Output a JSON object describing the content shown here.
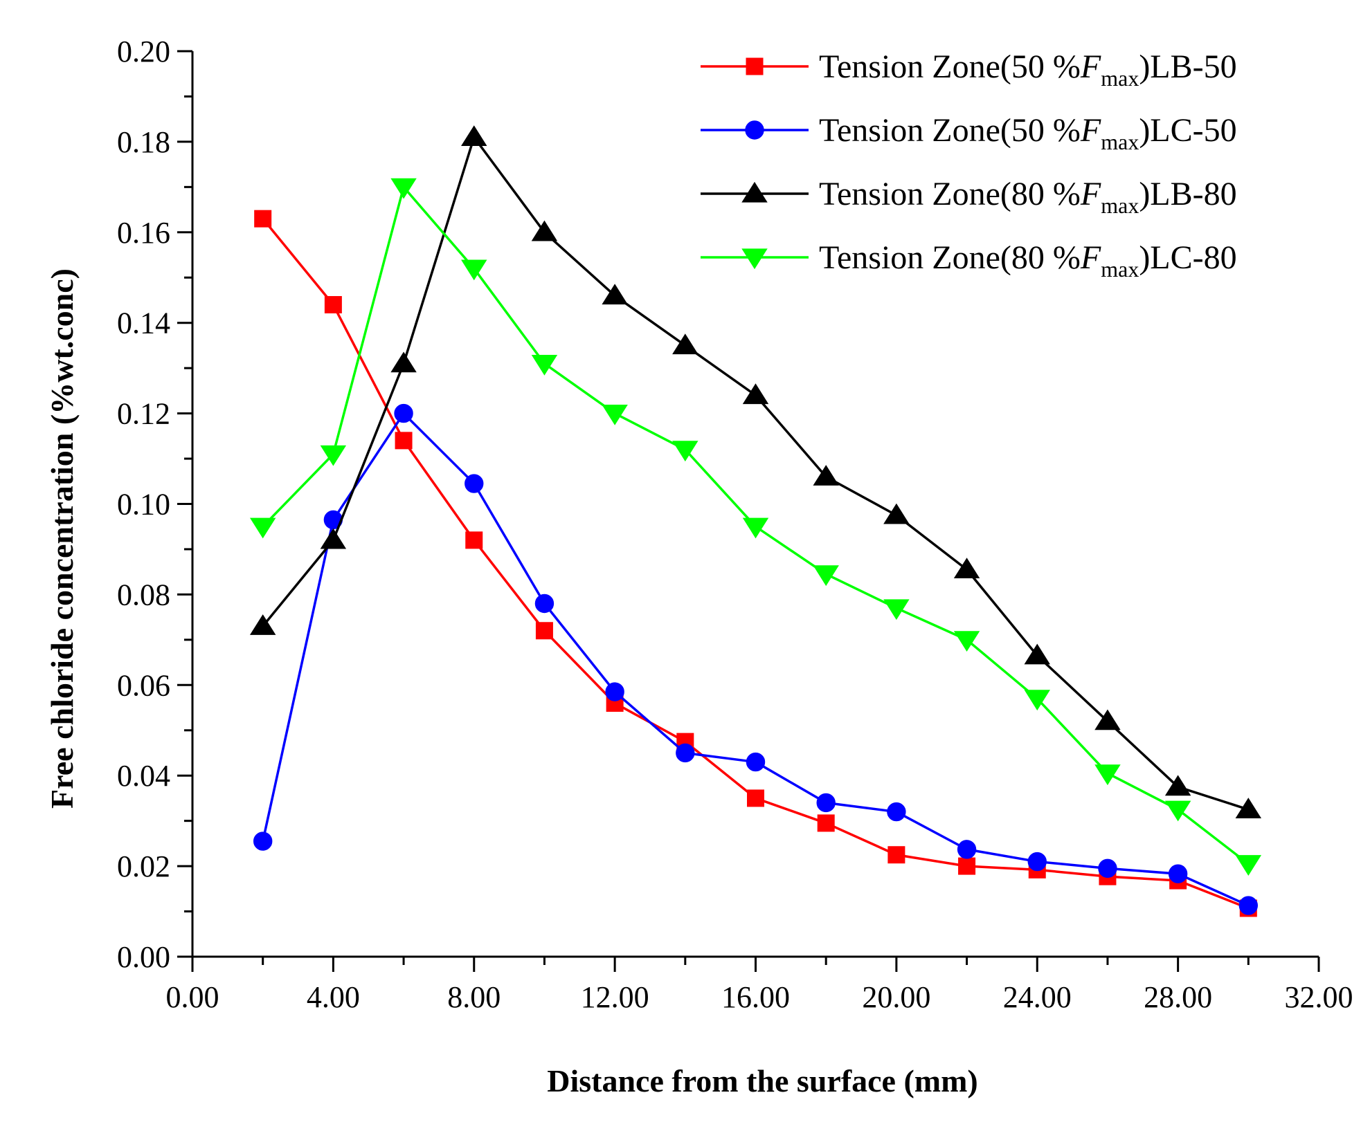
{
  "chart_data": {
    "type": "line",
    "xlabel": "Distance from the surface (mm)",
    "ylabel": "Free chloride concentration (%wt.conc)",
    "xlim": [
      0,
      32
    ],
    "ylim": [
      0,
      0.2
    ],
    "xticks": [
      "0.00",
      "4.00",
      "8.00",
      "12.00",
      "16.00",
      "20.00",
      "24.00",
      "28.00",
      "32.00"
    ],
    "yticks": [
      "0.00",
      "0.02",
      "0.04",
      "0.06",
      "0.08",
      "0.10",
      "0.12",
      "0.14",
      "0.16",
      "0.18",
      "0.20"
    ],
    "grid": false,
    "legend_position": "top-right",
    "x": [
      2,
      4,
      6,
      8,
      10,
      12,
      14,
      16,
      18,
      20,
      22,
      24,
      26,
      28,
      30
    ],
    "series": [
      {
        "name": "Tension Zone(50 %Fmax)LB-50",
        "legend_parts": {
          "prefix": "Tension Zone(50 %",
          "italic": "F",
          "sub": "max",
          "suffix": ")LB-50"
        },
        "color": "#ff0000",
        "marker": "square",
        "values": [
          0.163,
          0.144,
          0.114,
          0.092,
          0.072,
          0.056,
          0.0475,
          0.035,
          0.0295,
          0.0225,
          0.02,
          0.0192,
          0.0177,
          0.0168,
          0.0107
        ]
      },
      {
        "name": "Tension Zone(50 %Fmax)LC-50",
        "legend_parts": {
          "prefix": "Tension Zone(50 %",
          "italic": "F",
          "sub": "max",
          "suffix": ")LC-50"
        },
        "color": "#0000ff",
        "marker": "circle",
        "values": [
          0.0255,
          0.0965,
          0.12,
          0.1045,
          0.078,
          0.0585,
          0.045,
          0.043,
          0.034,
          0.032,
          0.0237,
          0.021,
          0.0195,
          0.0183,
          0.0113
        ]
      },
      {
        "name": "Tension Zone(80 %Fmax)LB-80",
        "legend_parts": {
          "prefix": "Tension Zone(80 %",
          "italic": "F",
          "sub": "max",
          "suffix": ")LB-80"
        },
        "color": "#000000",
        "marker": "triangle-up",
        "values": [
          0.073,
          0.092,
          0.131,
          0.181,
          0.16,
          0.146,
          0.135,
          0.124,
          0.106,
          0.0975,
          0.0855,
          0.0665,
          0.052,
          0.0375,
          0.0325
        ]
      },
      {
        "name": "Tension Zone(80 %Fmax)LC-80",
        "legend_parts": {
          "prefix": "Tension Zone(80 %",
          "italic": "F",
          "sub": "max",
          "suffix": ")LC-80"
        },
        "color": "#00ff00",
        "marker": "triangle-down",
        "values": [
          0.095,
          0.111,
          0.17,
          0.152,
          0.131,
          0.12,
          0.112,
          0.095,
          0.0845,
          0.077,
          0.07,
          0.057,
          0.0405,
          0.0325,
          0.0205
        ]
      }
    ]
  }
}
